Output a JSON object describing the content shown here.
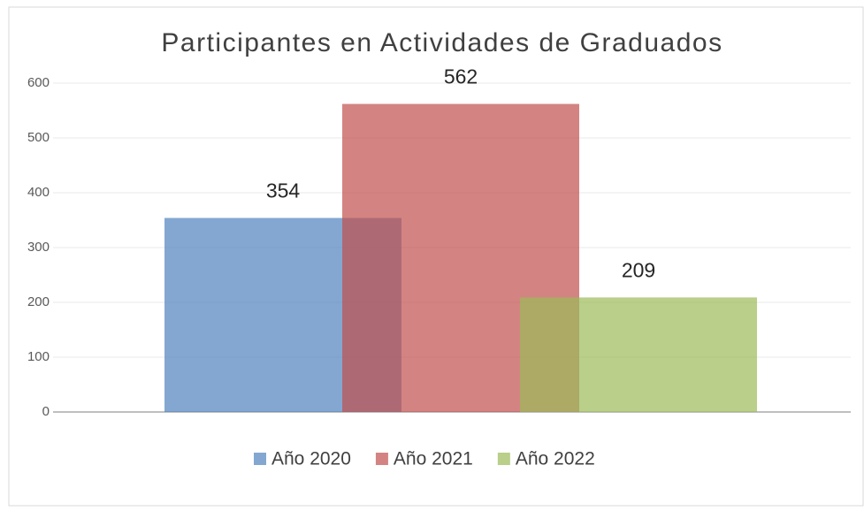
{
  "chart_data": {
    "type": "bar",
    "title": "Participantes en Actividades de Graduados",
    "categories": [
      null
    ],
    "series": [
      {
        "name": "Año 2020",
        "color": "#4f81bd",
        "values": [
          354
        ]
      },
      {
        "name": "Año 2021",
        "color": "#c0504d",
        "values": [
          562
        ]
      },
      {
        "name": "Año 2022",
        "color": "#9bbb59",
        "values": [
          209
        ]
      }
    ],
    "ylim": [
      0,
      600
    ],
    "yticks": [
      0,
      100,
      200,
      300,
      400,
      500,
      600
    ],
    "grid": true,
    "legend": "bottom"
  }
}
